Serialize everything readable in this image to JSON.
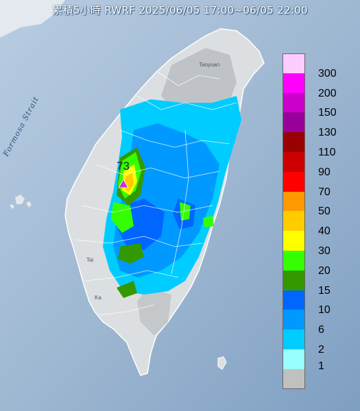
{
  "title": "累積5小時 RWRF 2025/06/05 17:00~06/05 22:00",
  "sea_label": "Formosa Strait",
  "places": [
    {
      "name": "Taoyuan"
    },
    {
      "name": "Tai"
    },
    {
      "name": "Ka"
    }
  ],
  "max_marker": {
    "value": "73",
    "marker_color": "#cc33cc"
  },
  "legend": [
    {
      "label": "300",
      "color": "#ffccff"
    },
    {
      "label": "200",
      "color": "#ff00ff"
    },
    {
      "label": "150",
      "color": "#cc00cc"
    },
    {
      "label": "130",
      "color": "#990099"
    },
    {
      "label": "110",
      "color": "#990000"
    },
    {
      "label": "90",
      "color": "#cc0000"
    },
    {
      "label": "70",
      "color": "#ff0000"
    },
    {
      "label": "50",
      "color": "#ff9900"
    },
    {
      "label": "40",
      "color": "#ffcc00"
    },
    {
      "label": "30",
      "color": "#ffff00"
    },
    {
      "label": "20",
      "color": "#33ff00"
    },
    {
      "label": "15",
      "color": "#339900"
    },
    {
      "label": "10",
      "color": "#0066ff"
    },
    {
      "label": "6",
      "color": "#0099ff"
    },
    {
      "label": "2",
      "color": "#00ccff"
    },
    {
      "label": "1",
      "color": "#99ffff"
    },
    {
      "label": "",
      "color": "#c0c0c0"
    }
  ],
  "legend_bottom_label": "1"
}
